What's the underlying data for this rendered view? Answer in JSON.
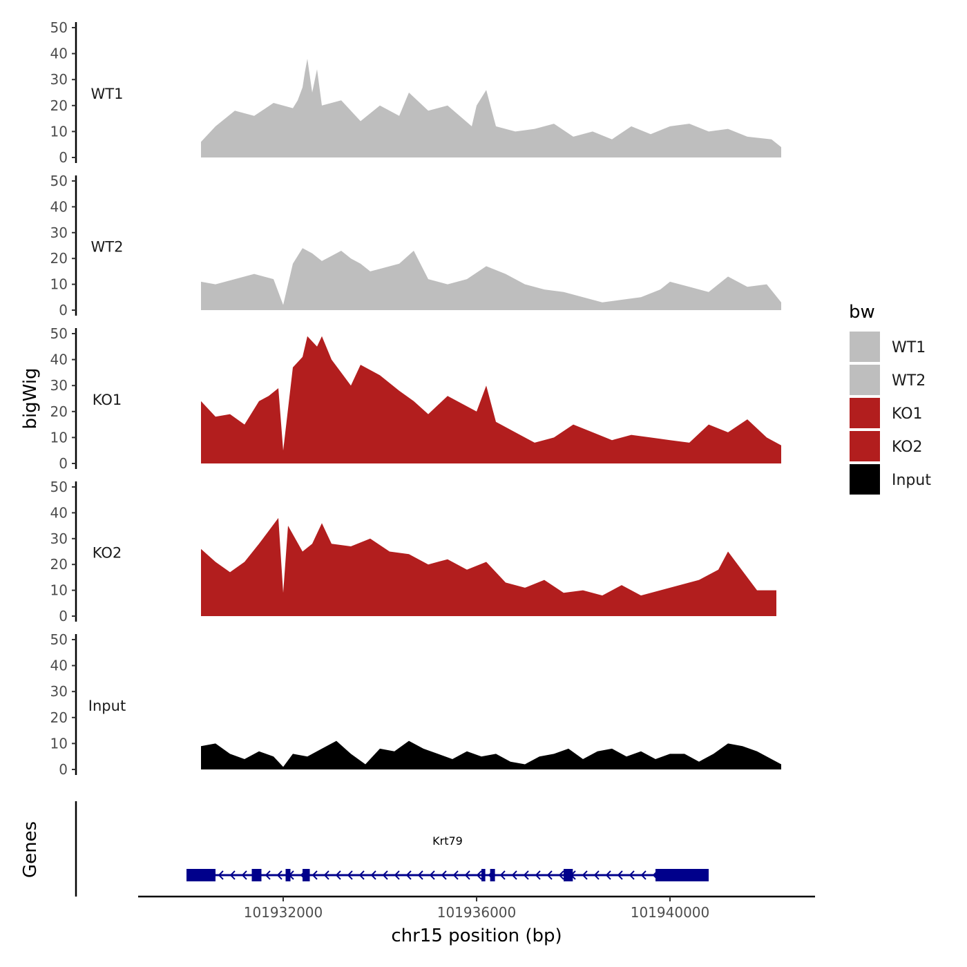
{
  "chart_data": {
    "type": "area",
    "title": "",
    "ylabel": "bigWig",
    "xlabel": "chr15 position (bp)",
    "xlim": [
      101929000,
      101943000
    ],
    "ylim": [
      0,
      50
    ],
    "yticks": [
      0,
      10,
      20,
      30,
      40,
      50
    ],
    "xticks": [
      101932000,
      101936000,
      101940000
    ],
    "xtick_labels": [
      "101932000",
      "101936000",
      "101940000"
    ],
    "legend": {
      "title": "bw",
      "position": "right"
    },
    "series": [
      {
        "name": "WT1",
        "color": "#bebebe",
        "x": [
          101930300,
          101930600,
          101931000,
          101931400,
          101931800,
          101932200,
          101932300,
          101932400,
          101932450,
          101932500,
          101932600,
          101932700,
          101932800,
          101933200,
          101933600,
          101934000,
          101934400,
          101934600,
          101935000,
          101935400,
          101935900,
          101936000,
          101936200,
          101936400,
          101936800,
          101937200,
          101937600,
          101938000,
          101938400,
          101938800,
          101939200,
          101939600,
          101940000,
          101940400,
          101940800,
          101941200,
          101941600,
          101942100,
          101942300
        ],
        "values": [
          6,
          12,
          18,
          16,
          21,
          19,
          22,
          27,
          33,
          38,
          25,
          34,
          20,
          22,
          14,
          20,
          16,
          25,
          18,
          20,
          12,
          20,
          26,
          12,
          10,
          11,
          13,
          8,
          10,
          7,
          12,
          9,
          12,
          13,
          10,
          11,
          8,
          7,
          4
        ]
      },
      {
        "name": "WT2",
        "color": "#bebebe",
        "x": [
          101930300,
          101930600,
          101931000,
          101931400,
          101931800,
          101932000,
          101932200,
          101932400,
          101932600,
          101932800,
          101933000,
          101933200,
          101933400,
          101933600,
          101933800,
          101934000,
          101934400,
          101934700,
          101935000,
          101935400,
          101935800,
          101936200,
          101936600,
          101937000,
          101937400,
          101937800,
          101938200,
          101938600,
          101939000,
          101939400,
          101939800,
          101940000,
          101940400,
          101940800,
          101941200,
          101941600,
          101942000,
          101942300
        ],
        "values": [
          11,
          10,
          12,
          14,
          12,
          2,
          18,
          24,
          22,
          19,
          21,
          23,
          20,
          18,
          15,
          16,
          18,
          23,
          12,
          10,
          12,
          17,
          14,
          10,
          8,
          7,
          5,
          3,
          4,
          5,
          8,
          11,
          9,
          7,
          13,
          9,
          10,
          3
        ]
      },
      {
        "name": "KO1",
        "color": "#b21e1e",
        "x": [
          101930300,
          101930600,
          101930900,
          101931200,
          101931500,
          101931700,
          101931900,
          101932000,
          101932200,
          101932400,
          101932500,
          101932700,
          101932800,
          101933000,
          101933200,
          101933400,
          101933600,
          101934000,
          101934400,
          101934700,
          101935000,
          101935400,
          101935800,
          101936000,
          101936200,
          101936400,
          101936800,
          101937200,
          101937600,
          101938000,
          101938400,
          101938800,
          101939200,
          101939600,
          101940000,
          101940400,
          101940800,
          101941200,
          101941600,
          101942000,
          101942300
        ],
        "values": [
          24,
          18,
          19,
          15,
          24,
          26,
          29,
          5,
          37,
          41,
          49,
          45,
          49,
          40,
          35,
          30,
          38,
          34,
          28,
          24,
          19,
          26,
          22,
          20,
          30,
          16,
          12,
          8,
          10,
          15,
          12,
          9,
          11,
          10,
          9,
          8,
          15,
          12,
          17,
          10,
          7
        ]
      },
      {
        "name": "KO2",
        "color": "#b21e1e",
        "x": [
          101930300,
          101930600,
          101930900,
          101931200,
          101931500,
          101931700,
          101931900,
          101932000,
          101932100,
          101932400,
          101932600,
          101932800,
          101933000,
          101933400,
          101933800,
          101934200,
          101934600,
          101935000,
          101935400,
          101935800,
          101936200,
          101936600,
          101937000,
          101937400,
          101937800,
          101938200,
          101938600,
          101939000,
          101939400,
          101939800,
          101940200,
          101940600,
          101941000,
          101941200,
          101941400,
          101941800,
          101942200
        ],
        "values": [
          26,
          21,
          17,
          21,
          28,
          33,
          38,
          9,
          35,
          25,
          28,
          36,
          28,
          27,
          30,
          25,
          24,
          20,
          22,
          18,
          21,
          13,
          11,
          14,
          9,
          10,
          8,
          12,
          8,
          10,
          12,
          14,
          18,
          25,
          20,
          10,
          10
        ]
      },
      {
        "name": "Input",
        "color": "#000000",
        "x": [
          101930300,
          101930600,
          101930900,
          101931200,
          101931500,
          101931800,
          101932000,
          101932200,
          101932500,
          101932800,
          101933100,
          101933400,
          101933700,
          101934000,
          101934300,
          101934600,
          101934900,
          101935200,
          101935500,
          101935800,
          101936100,
          101936400,
          101936700,
          101937000,
          101937300,
          101937600,
          101937900,
          101938200,
          101938500,
          101938800,
          101939100,
          101939400,
          101939700,
          101940000,
          101940300,
          101940600,
          101940900,
          101941200,
          101941500,
          101941800,
          101942100,
          101942300
        ],
        "values": [
          9,
          10,
          6,
          4,
          7,
          5,
          1,
          6,
          5,
          8,
          11,
          6,
          2,
          8,
          7,
          11,
          8,
          6,
          4,
          7,
          5,
          6,
          3,
          2,
          5,
          6,
          8,
          4,
          7,
          8,
          5,
          7,
          4,
          6,
          6,
          3,
          6,
          10,
          9,
          7,
          4,
          2
        ]
      }
    ],
    "genes": {
      "title": "Genes",
      "color": "#00008b",
      "name": "Krt79",
      "start": 101930000,
      "end": 101940800,
      "strand": "-",
      "exons": [
        [
          101930000,
          101930600
        ],
        [
          101931350,
          101931550
        ],
        [
          101932050,
          101932150
        ],
        [
          101932400,
          101932550
        ],
        [
          101936100,
          101936180
        ],
        [
          101936280,
          101936380
        ],
        [
          101937800,
          101937990
        ],
        [
          101939700,
          101940800
        ]
      ]
    }
  }
}
